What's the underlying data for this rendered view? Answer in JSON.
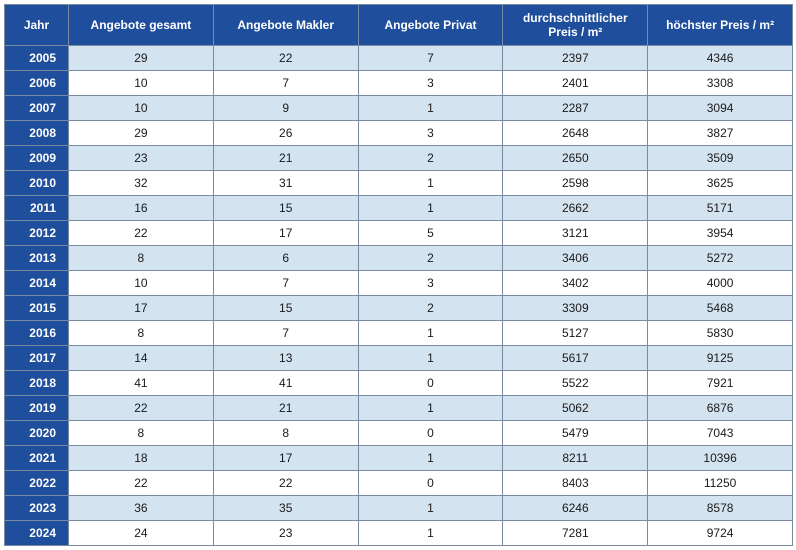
{
  "table": {
    "columns": [
      "Jahr",
      "Angebote gesamt",
      "Angebote Makler",
      "Angebote Privat",
      "durchschnittlicher Preis / m²",
      "höchster Preis / m²"
    ],
    "header_bg": "#1f4e9c",
    "header_color": "#ffffff",
    "row_alt_bg": "#d4e3f0",
    "row_bg": "#ffffff",
    "border_color": "#7a8aa0",
    "font_size": 12,
    "rows": [
      [
        "2005",
        "29",
        "22",
        "7",
        "2397",
        "4346"
      ],
      [
        "2006",
        "10",
        "7",
        "3",
        "2401",
        "3308"
      ],
      [
        "2007",
        "10",
        "9",
        "1",
        "2287",
        "3094"
      ],
      [
        "2008",
        "29",
        "26",
        "3",
        "2648",
        "3827"
      ],
      [
        "2009",
        "23",
        "21",
        "2",
        "2650",
        "3509"
      ],
      [
        "2010",
        "32",
        "31",
        "1",
        "2598",
        "3625"
      ],
      [
        "2011",
        "16",
        "15",
        "1",
        "2662",
        "5171"
      ],
      [
        "2012",
        "22",
        "17",
        "5",
        "3121",
        "3954"
      ],
      [
        "2013",
        "8",
        "6",
        "2",
        "3406",
        "5272"
      ],
      [
        "2014",
        "10",
        "7",
        "3",
        "3402",
        "4000"
      ],
      [
        "2015",
        "17",
        "15",
        "2",
        "3309",
        "5468"
      ],
      [
        "2016",
        "8",
        "7",
        "1",
        "5127",
        "5830"
      ],
      [
        "2017",
        "14",
        "13",
        "1",
        "5617",
        "9125"
      ],
      [
        "2018",
        "41",
        "41",
        "0",
        "5522",
        "7921"
      ],
      [
        "2019",
        "22",
        "21",
        "1",
        "5062",
        "6876"
      ],
      [
        "2020",
        "8",
        "8",
        "0",
        "5479",
        "7043"
      ],
      [
        "2021",
        "18",
        "17",
        "1",
        "8211",
        "10396"
      ],
      [
        "2022",
        "22",
        "22",
        "0",
        "8403",
        "11250"
      ],
      [
        "2023",
        "36",
        "35",
        "1",
        "6246",
        "8578"
      ],
      [
        "2024",
        "24",
        "23",
        "1",
        "7281",
        "9724"
      ]
    ]
  }
}
